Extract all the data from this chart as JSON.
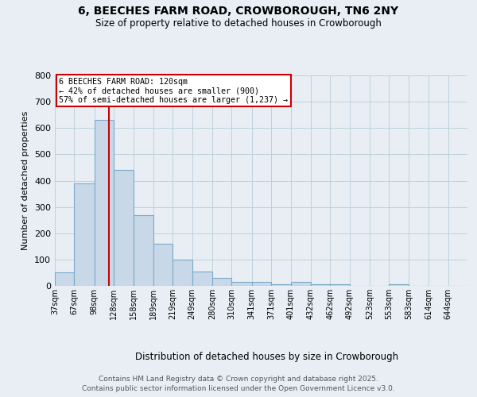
{
  "title": "6, BEECHES FARM ROAD, CROWBOROUGH, TN6 2NY",
  "subtitle": "Size of property relative to detached houses in Crowborough",
  "xlabel": "Distribution of detached houses by size in Crowborough",
  "ylabel": "Number of detached properties",
  "bin_labels": [
    "37sqm",
    "67sqm",
    "98sqm",
    "128sqm",
    "158sqm",
    "189sqm",
    "219sqm",
    "249sqm",
    "280sqm",
    "310sqm",
    "341sqm",
    "371sqm",
    "401sqm",
    "432sqm",
    "462sqm",
    "492sqm",
    "523sqm",
    "553sqm",
    "583sqm",
    "614sqm",
    "644sqm"
  ],
  "bar_heights": [
    50,
    390,
    630,
    440,
    270,
    160,
    100,
    55,
    30,
    15,
    15,
    5,
    15,
    5,
    5,
    0,
    0,
    5,
    0,
    0,
    0
  ],
  "bin_edges": [
    37,
    67,
    98,
    128,
    158,
    189,
    219,
    249,
    280,
    310,
    341,
    371,
    401,
    432,
    462,
    492,
    523,
    553,
    583,
    614,
    644
  ],
  "bar_color": "#c8d8e8",
  "bar_edge_color": "#7aaac8",
  "red_line_x": 120,
  "annotation_title": "6 BEECHES FARM ROAD: 120sqm",
  "annotation_line1": "← 42% of detached houses are smaller (900)",
  "annotation_line2": "57% of semi-detached houses are larger (1,237) →",
  "annotation_box_color": "#ffffff",
  "annotation_box_edge": "#cc0000",
  "red_line_color": "#cc0000",
  "ylim": [
    0,
    800
  ],
  "yticks": [
    0,
    100,
    200,
    300,
    400,
    500,
    600,
    700,
    800
  ],
  "footer1": "Contains HM Land Registry data © Crown copyright and database right 2025.",
  "footer2": "Contains public sector information licensed under the Open Government Licence v3.0.",
  "background_color": "#e8eef4",
  "grid_color": "#b8ccd8"
}
